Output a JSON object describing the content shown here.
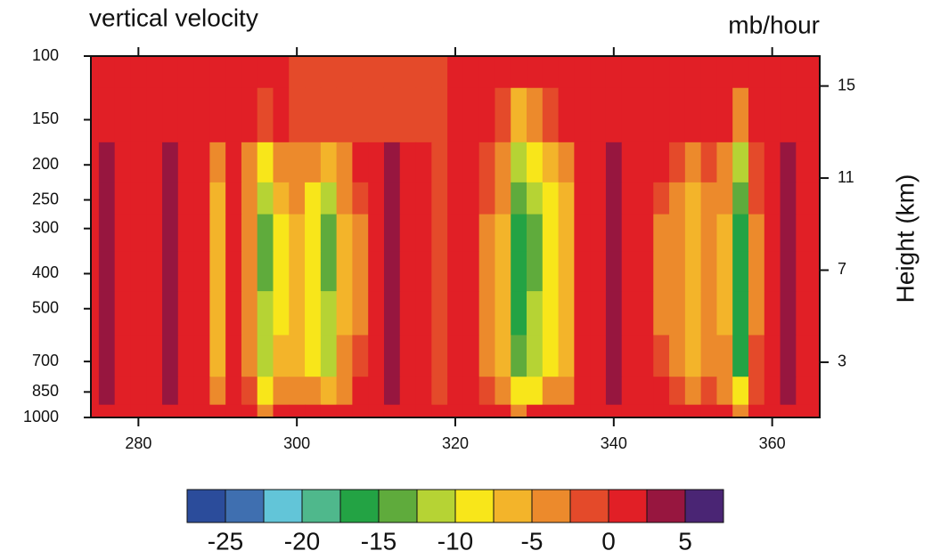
{
  "chart_data": {
    "type": "contour",
    "title": "vertical velocity",
    "units": "mb/hour",
    "y2label": "Height (km)",
    "x": [
      274,
      276,
      278,
      280,
      282,
      284,
      286,
      288,
      290,
      292,
      294,
      296,
      298,
      300,
      302,
      304,
      306,
      308,
      310,
      312,
      314,
      316,
      318,
      320,
      322,
      324,
      326,
      328,
      330,
      332,
      334,
      336,
      338,
      340,
      342,
      344,
      346,
      348,
      350,
      352,
      354,
      356,
      358,
      360,
      362,
      364,
      366
    ],
    "y": [
      100,
      150,
      200,
      250,
      300,
      400,
      500,
      700,
      850,
      1000
    ],
    "z": [
      [
        1,
        1,
        1,
        1,
        1,
        1,
        1,
        1,
        1,
        1,
        1,
        1,
        1,
        -1,
        -1,
        -1,
        -1,
        -1,
        -1,
        -1,
        -1,
        -1,
        -1,
        1,
        1,
        1,
        1,
        1,
        1,
        1,
        1,
        1,
        1,
        1,
        1,
        1,
        1,
        1,
        1,
        1,
        1,
        1,
        1,
        1,
        1,
        1,
        1
      ],
      [
        1,
        1,
        1,
        1,
        1,
        1,
        1,
        1,
        1,
        1,
        1,
        -2,
        1,
        -1,
        -1,
        -1,
        -1,
        -1,
        -1,
        -1,
        -1,
        -1,
        -1,
        1,
        1,
        1,
        -2,
        -6,
        -4,
        -1,
        1,
        1,
        1,
        1,
        1,
        1,
        1,
        1,
        1,
        1,
        1,
        -4,
        1,
        1,
        1,
        1,
        1
      ],
      [
        1,
        3,
        1,
        1,
        1,
        3,
        1,
        1,
        -4,
        1,
        -3,
        -8,
        -5,
        -3,
        -5,
        -6,
        -3,
        1,
        1,
        3,
        1,
        1,
        -1,
        1,
        1,
        -1,
        -4,
        -12,
        -9,
        -6,
        -3,
        1,
        1,
        3,
        1,
        1,
        1,
        -2,
        -3,
        -2,
        -4,
        -12,
        -1,
        1,
        3,
        1,
        1
      ],
      [
        1,
        3,
        1,
        1,
        1,
        3,
        1,
        1,
        -6,
        1,
        -3,
        -11,
        -7,
        -5,
        -8,
        -11,
        -5,
        -2,
        1,
        3,
        1,
        1,
        -1,
        1,
        1,
        -2,
        -5,
        -15,
        -11,
        -8,
        -6,
        1,
        1,
        3,
        1,
        1,
        -2,
        -4,
        -6,
        -3,
        -5,
        -15,
        -2,
        1,
        3,
        1,
        1
      ],
      [
        1,
        3,
        1,
        1,
        1,
        3,
        1,
        1,
        -7,
        1,
        -3,
        -13,
        -8,
        -6,
        -9,
        -13,
        -6,
        -3,
        1,
        3,
        1,
        1,
        -1,
        1,
        1,
        -3,
        -6,
        -17,
        -13,
        -9,
        -7,
        1,
        1,
        3,
        1,
        1,
        -3,
        -5,
        -7,
        -4,
        -6,
        -17,
        -3,
        1,
        3,
        1,
        1
      ],
      [
        1,
        3,
        1,
        1,
        1,
        3,
        1,
        1,
        -7,
        1,
        -3,
        -13,
        -8,
        -6,
        -9,
        -13,
        -6,
        -3,
        1,
        3,
        1,
        1,
        -1,
        1,
        1,
        -3,
        -6,
        -17,
        -13,
        -9,
        -7,
        1,
        1,
        3,
        1,
        1,
        -3,
        -5,
        -7,
        -4,
        -6,
        -17,
        -3,
        1,
        3,
        1,
        1
      ],
      [
        1,
        3,
        1,
        1,
        1,
        3,
        1,
        1,
        -7,
        1,
        -3,
        -12,
        -8,
        -6,
        -9,
        -12,
        -6,
        -3,
        1,
        3,
        1,
        1,
        -1,
        1,
        1,
        -3,
        -6,
        -16,
        -12,
        -9,
        -7,
        1,
        1,
        3,
        1,
        1,
        -3,
        -5,
        -7,
        -4,
        -6,
        -17,
        -3,
        1,
        3,
        1,
        1
      ],
      [
        1,
        3,
        1,
        1,
        1,
        3,
        1,
        1,
        -6,
        1,
        -3,
        -11,
        -7,
        -6,
        -8,
        -11,
        -5,
        -2,
        1,
        3,
        1,
        1,
        -1,
        1,
        1,
        -3,
        -6,
        -15,
        -12,
        -8,
        -6,
        1,
        1,
        3,
        1,
        1,
        -2,
        -4,
        -6,
        -3,
        -5,
        -16,
        -2,
        1,
        3,
        1,
        1
      ],
      [
        1,
        3,
        1,
        1,
        1,
        3,
        1,
        1,
        -4,
        1,
        -2,
        -8,
        -5,
        -3,
        -5,
        -6,
        -3,
        1,
        1,
        3,
        1,
        1,
        -1,
        1,
        1,
        -2,
        -4,
        -10,
        -8,
        -5,
        -3,
        1,
        1,
        3,
        1,
        1,
        1,
        -2,
        -3,
        -2,
        -4,
        -10,
        -1,
        1,
        3,
        1,
        1
      ],
      [
        1,
        1,
        1,
        1,
        1,
        1,
        1,
        1,
        1,
        1,
        1,
        -3,
        1,
        1,
        1,
        1,
        1,
        1,
        1,
        1,
        1,
        1,
        1,
        1,
        1,
        1,
        1,
        -4,
        1,
        1,
        1,
        1,
        1,
        1,
        1,
        1,
        1,
        1,
        1,
        1,
        1,
        -4,
        1,
        1,
        1,
        1,
        1
      ]
    ],
    "xlim": [
      274,
      366
    ],
    "xticks": [
      280,
      300,
      320,
      340,
      360
    ],
    "ylim": [
      100,
      1000
    ],
    "yticks": [
      100,
      150,
      200,
      250,
      300,
      400,
      500,
      700,
      850,
      1000
    ],
    "ylog": true,
    "yreverse": true,
    "y2lim": [
      0.6,
      16.3
    ],
    "y2ticks": [
      15,
      11,
      7,
      3
    ],
    "levels": [
      -25,
      -22.5,
      -20,
      -17.5,
      -15,
      -12.5,
      -10,
      -7.5,
      -5,
      -2.5,
      0,
      2.5,
      5
    ],
    "colors": [
      "#2b4c9b",
      "#3f6fb0",
      "#62c5d8",
      "#4fb88c",
      "#23a344",
      "#5fab3c",
      "#b6d334",
      "#f8e61a",
      "#f3b42a",
      "#ec8a2c",
      "#e44a2a",
      "#e11f26",
      "#97163f",
      "#4a2574"
    ],
    "colorbar_ticks": [
      -25,
      -20,
      -15,
      -10,
      -5,
      0,
      5
    ]
  }
}
